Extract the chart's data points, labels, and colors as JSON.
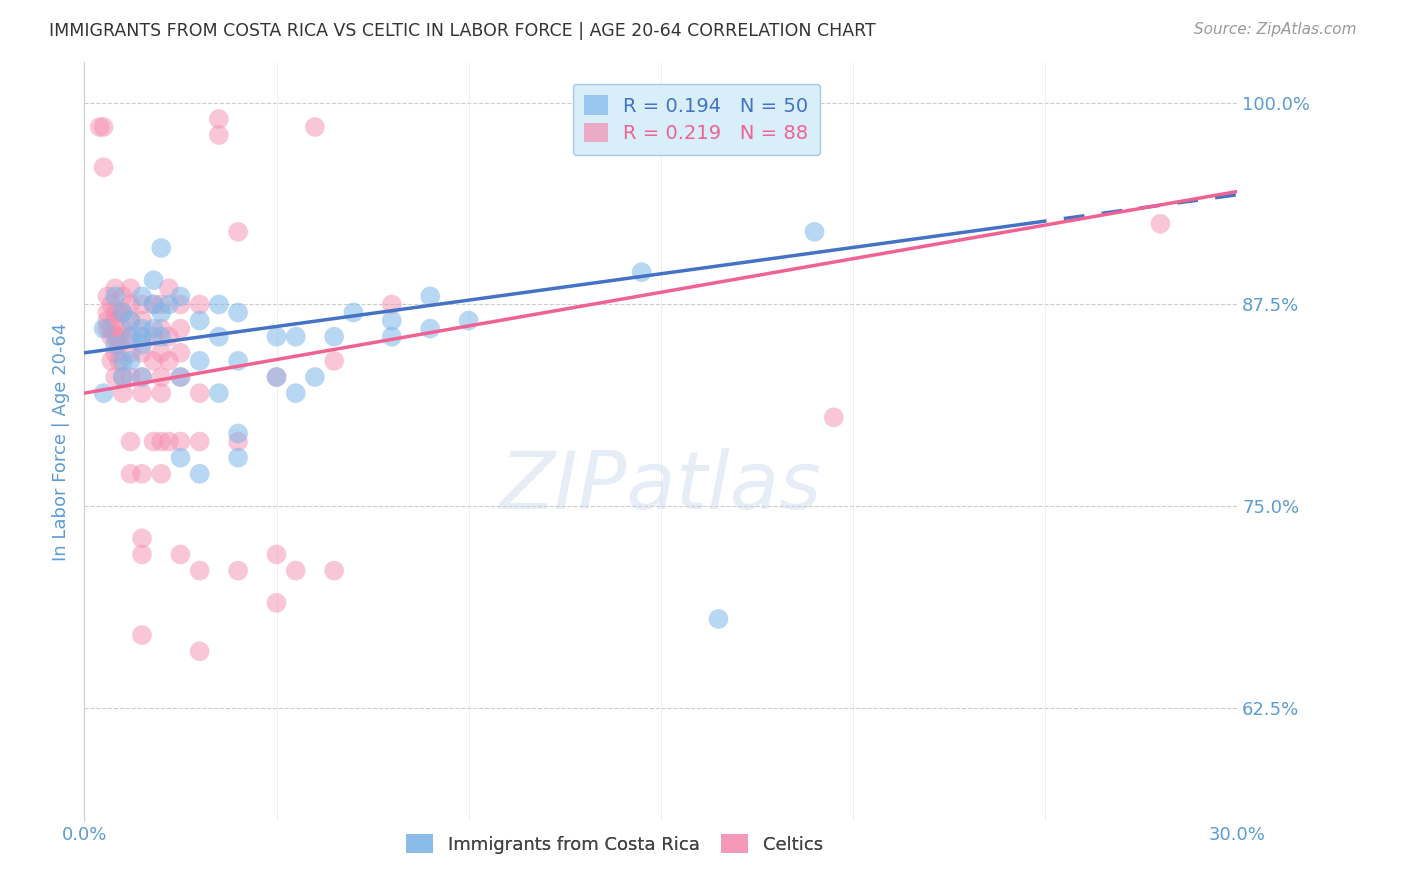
{
  "title": "IMMIGRANTS FROM COSTA RICA VS CELTIC IN LABOR FORCE | AGE 20-64 CORRELATION CHART",
  "source": "Source: ZipAtlas.com",
  "ylabel": "In Labor Force | Age 20-64",
  "xlim": [
    0.0,
    0.3
  ],
  "ylim": [
    0.555,
    1.025
  ],
  "yticks": [
    0.625,
    0.75,
    0.875,
    1.0
  ],
  "ytick_labels": [
    "62.5%",
    "75.0%",
    "87.5%",
    "100.0%"
  ],
  "xticks": [
    0.0,
    0.05,
    0.1,
    0.15,
    0.2,
    0.25,
    0.3
  ],
  "xtick_labels": [
    "0.0%",
    "",
    "",
    "",
    "",
    "",
    "30.0%"
  ],
  "axis_label_color": "#5B9BD5",
  "grid_color": "#CCCCCC",
  "blue_scatter": [
    [
      0.005,
      0.82
    ],
    [
      0.005,
      0.86
    ],
    [
      0.008,
      0.88
    ],
    [
      0.008,
      0.85
    ],
    [
      0.01,
      0.87
    ],
    [
      0.01,
      0.84
    ],
    [
      0.01,
      0.83
    ],
    [
      0.012,
      0.865
    ],
    [
      0.012,
      0.855
    ],
    [
      0.012,
      0.84
    ],
    [
      0.015,
      0.88
    ],
    [
      0.015,
      0.86
    ],
    [
      0.015,
      0.855
    ],
    [
      0.015,
      0.85
    ],
    [
      0.015,
      0.83
    ],
    [
      0.018,
      0.89
    ],
    [
      0.018,
      0.875
    ],
    [
      0.018,
      0.86
    ],
    [
      0.02,
      0.91
    ],
    [
      0.02,
      0.87
    ],
    [
      0.02,
      0.855
    ],
    [
      0.022,
      0.875
    ],
    [
      0.025,
      0.88
    ],
    [
      0.025,
      0.83
    ],
    [
      0.025,
      0.78
    ],
    [
      0.03,
      0.865
    ],
    [
      0.03,
      0.84
    ],
    [
      0.03,
      0.77
    ],
    [
      0.035,
      0.875
    ],
    [
      0.035,
      0.855
    ],
    [
      0.035,
      0.82
    ],
    [
      0.04,
      0.87
    ],
    [
      0.04,
      0.84
    ],
    [
      0.04,
      0.795
    ],
    [
      0.04,
      0.78
    ],
    [
      0.05,
      0.855
    ],
    [
      0.05,
      0.83
    ],
    [
      0.055,
      0.855
    ],
    [
      0.055,
      0.82
    ],
    [
      0.06,
      0.83
    ],
    [
      0.065,
      0.855
    ],
    [
      0.07,
      0.87
    ],
    [
      0.08,
      0.865
    ],
    [
      0.08,
      0.855
    ],
    [
      0.09,
      0.88
    ],
    [
      0.09,
      0.86
    ],
    [
      0.1,
      0.865
    ],
    [
      0.145,
      0.895
    ],
    [
      0.165,
      0.68
    ],
    [
      0.19,
      0.92
    ]
  ],
  "pink_scatter": [
    [
      0.004,
      0.985
    ],
    [
      0.005,
      0.985
    ],
    [
      0.005,
      0.96
    ],
    [
      0.006,
      0.88
    ],
    [
      0.006,
      0.87
    ],
    [
      0.006,
      0.865
    ],
    [
      0.006,
      0.86
    ],
    [
      0.007,
      0.875
    ],
    [
      0.007,
      0.86
    ],
    [
      0.007,
      0.855
    ],
    [
      0.007,
      0.84
    ],
    [
      0.008,
      0.885
    ],
    [
      0.008,
      0.87
    ],
    [
      0.008,
      0.865
    ],
    [
      0.008,
      0.855
    ],
    [
      0.008,
      0.845
    ],
    [
      0.008,
      0.83
    ],
    [
      0.009,
      0.87
    ],
    [
      0.009,
      0.855
    ],
    [
      0.009,
      0.85
    ],
    [
      0.009,
      0.84
    ],
    [
      0.01,
      0.88
    ],
    [
      0.01,
      0.87
    ],
    [
      0.01,
      0.86
    ],
    [
      0.01,
      0.855
    ],
    [
      0.01,
      0.83
    ],
    [
      0.01,
      0.82
    ],
    [
      0.012,
      0.885
    ],
    [
      0.012,
      0.875
    ],
    [
      0.012,
      0.865
    ],
    [
      0.012,
      0.855
    ],
    [
      0.012,
      0.845
    ],
    [
      0.012,
      0.83
    ],
    [
      0.012,
      0.79
    ],
    [
      0.012,
      0.77
    ],
    [
      0.015,
      0.875
    ],
    [
      0.015,
      0.865
    ],
    [
      0.015,
      0.855
    ],
    [
      0.015,
      0.845
    ],
    [
      0.015,
      0.83
    ],
    [
      0.015,
      0.82
    ],
    [
      0.015,
      0.77
    ],
    [
      0.015,
      0.73
    ],
    [
      0.015,
      0.72
    ],
    [
      0.015,
      0.67
    ],
    [
      0.018,
      0.875
    ],
    [
      0.018,
      0.855
    ],
    [
      0.018,
      0.84
    ],
    [
      0.018,
      0.79
    ],
    [
      0.02,
      0.875
    ],
    [
      0.02,
      0.86
    ],
    [
      0.02,
      0.845
    ],
    [
      0.02,
      0.83
    ],
    [
      0.02,
      0.82
    ],
    [
      0.02,
      0.79
    ],
    [
      0.02,
      0.77
    ],
    [
      0.022,
      0.885
    ],
    [
      0.022,
      0.855
    ],
    [
      0.022,
      0.84
    ],
    [
      0.022,
      0.79
    ],
    [
      0.025,
      0.875
    ],
    [
      0.025,
      0.86
    ],
    [
      0.025,
      0.845
    ],
    [
      0.025,
      0.83
    ],
    [
      0.025,
      0.79
    ],
    [
      0.025,
      0.72
    ],
    [
      0.03,
      0.875
    ],
    [
      0.03,
      0.82
    ],
    [
      0.03,
      0.79
    ],
    [
      0.03,
      0.71
    ],
    [
      0.03,
      0.66
    ],
    [
      0.035,
      0.99
    ],
    [
      0.035,
      0.98
    ],
    [
      0.04,
      0.92
    ],
    [
      0.04,
      0.79
    ],
    [
      0.04,
      0.71
    ],
    [
      0.05,
      0.83
    ],
    [
      0.05,
      0.72
    ],
    [
      0.05,
      0.69
    ],
    [
      0.055,
      0.71
    ],
    [
      0.06,
      0.985
    ],
    [
      0.065,
      0.84
    ],
    [
      0.065,
      0.71
    ],
    [
      0.08,
      0.875
    ],
    [
      0.195,
      0.805
    ],
    [
      0.28,
      0.925
    ]
  ],
  "blue_line": {
    "x0": 0.0,
    "y0": 0.845,
    "x1": 0.245,
    "y1": 0.925,
    "x2": 0.3,
    "y2": 0.943
  },
  "pink_line": {
    "x0": 0.0,
    "y0": 0.82,
    "x1": 0.3,
    "y1": 0.945
  },
  "blue_color": "#7EB6E8",
  "pink_color": "#F48FB1",
  "blue_line_color": "#4472C4",
  "pink_line_color": "#F06292",
  "legend_box_color": "#D8EEF8",
  "legend_border_color": "#A8C8E8"
}
